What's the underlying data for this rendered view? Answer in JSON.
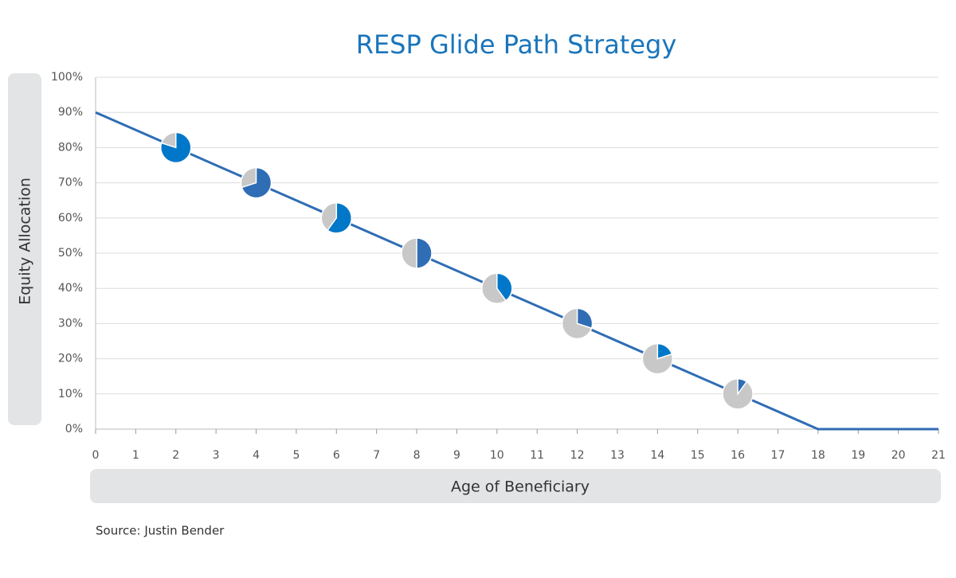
{
  "chart_data": {
    "type": "line",
    "title": "RESP Glide Path Strategy",
    "y_label": "Equity Allocation",
    "x_label": "Age of Beneficiary",
    "source": "Source: Justin Bender",
    "x": [
      0,
      18,
      21
    ],
    "values": [
      90,
      0,
      0
    ],
    "color": "#2f6db5",
    "pies": {
      "x": [
        2,
        4,
        6,
        8,
        10,
        12,
        14,
        16
      ],
      "values": [
        80,
        70,
        60,
        50,
        40,
        30,
        20,
        10
      ],
      "colors": [
        "#0077c8",
        "#2f6db5",
        "#0077c8",
        "#2f6db5",
        "#0077c8",
        "#2f6db5",
        "#0077c8",
        "#2f6db5"
      ],
      "remainder_color": "#c8c8c8"
    },
    "xlim": [
      0,
      21
    ],
    "ylim": [
      0,
      100
    ],
    "xticks": [
      0,
      1,
      2,
      3,
      4,
      5,
      6,
      7,
      8,
      9,
      10,
      11,
      12,
      13,
      14,
      15,
      16,
      17,
      18,
      19,
      20,
      21
    ],
    "yticks": [
      {
        "value": 0,
        "label": "0%"
      },
      {
        "value": 10,
        "label": "10%"
      },
      {
        "value": 20,
        "label": "20%"
      },
      {
        "value": 30,
        "label": "30%"
      },
      {
        "value": 40,
        "label": "40%"
      },
      {
        "value": 50,
        "label": "50%"
      },
      {
        "value": 60,
        "label": "60%"
      },
      {
        "value": 70,
        "label": "70%"
      },
      {
        "value": 80,
        "label": "80%"
      },
      {
        "value": 90,
        "label": "90%"
      },
      {
        "value": 100,
        "label": "100%"
      }
    ],
    "grid": true
  }
}
